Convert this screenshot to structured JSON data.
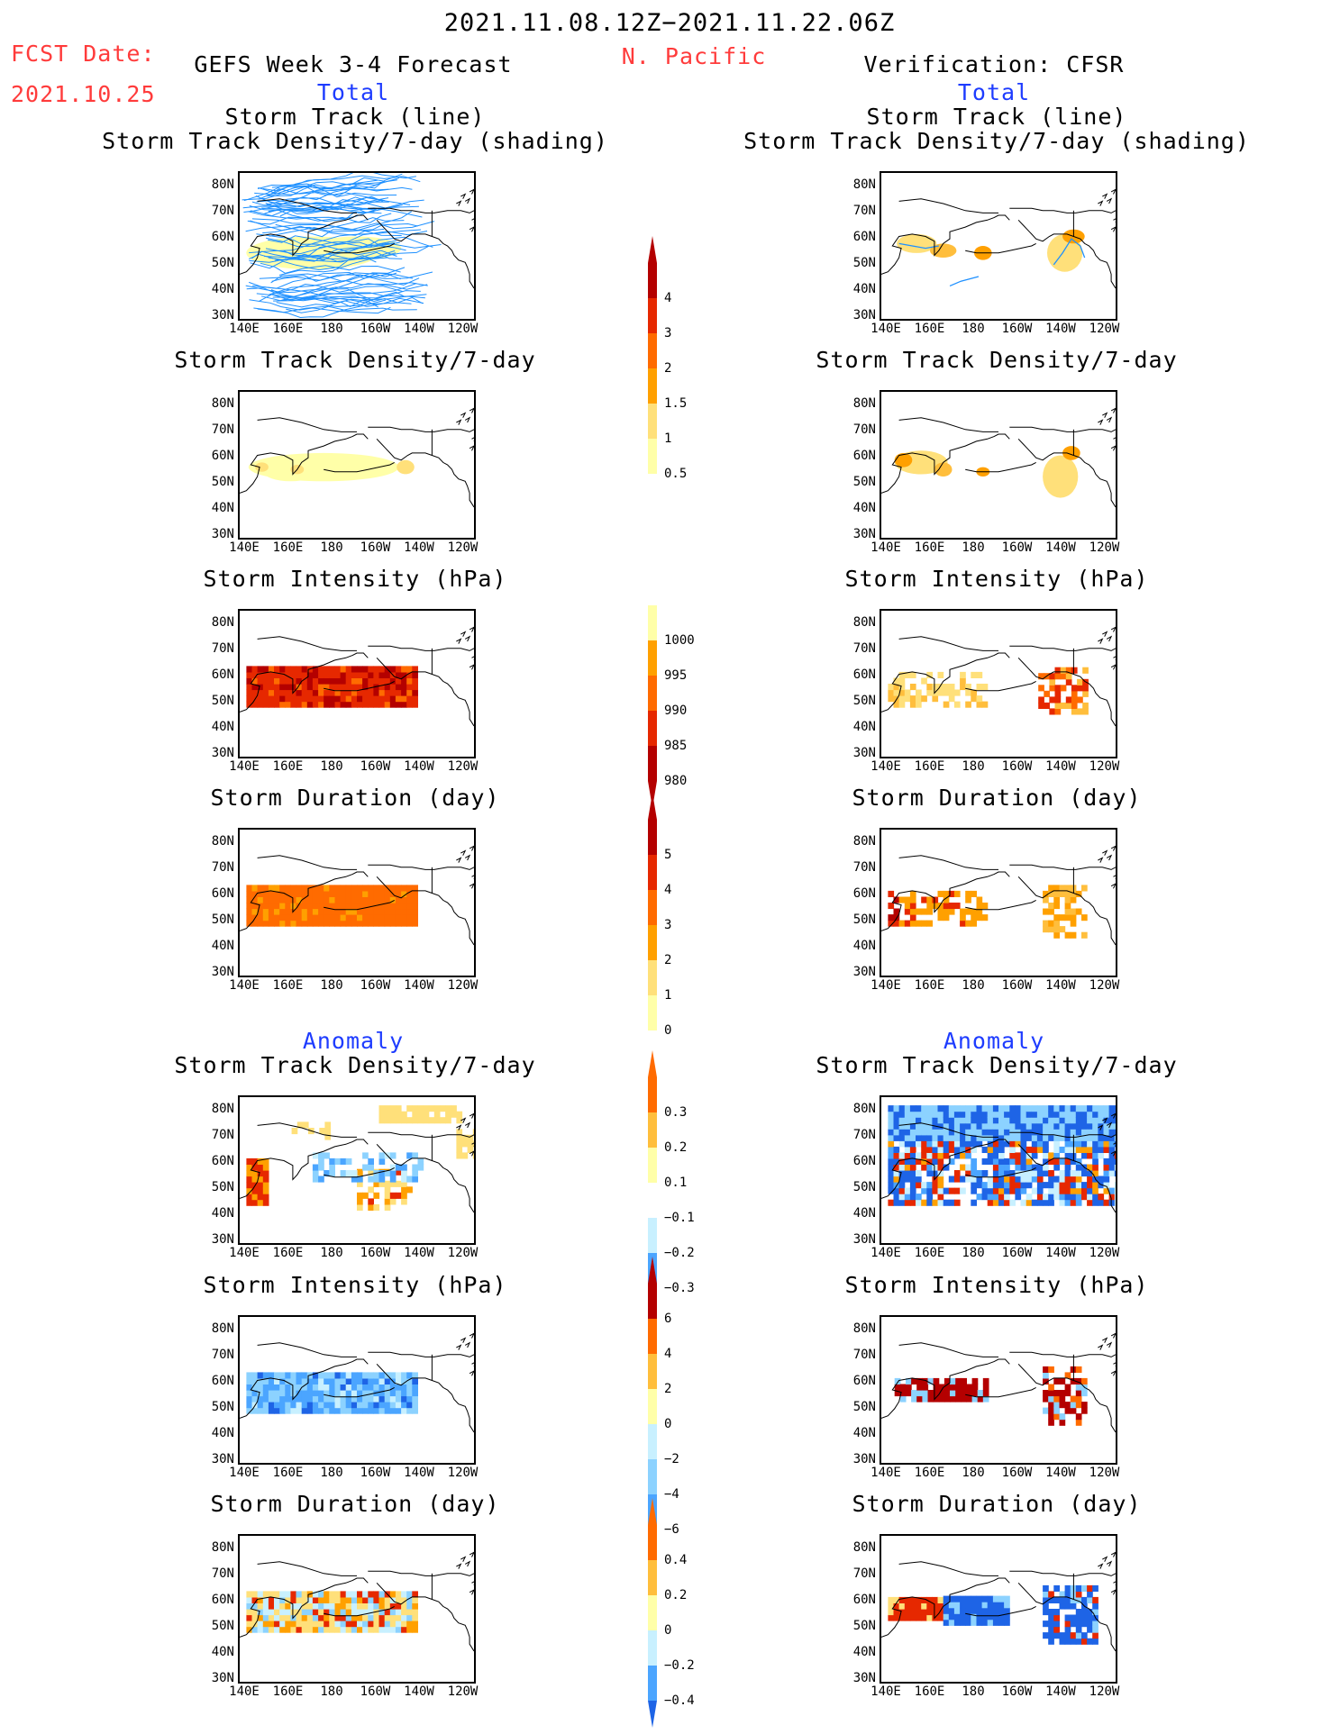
{
  "header": {
    "period": "2021.11.08.12Z−2021.11.22.06Z",
    "region": "N. Pacific",
    "fcst_label": "FCST Date:",
    "fcst_date": "2021.10.25",
    "left_title": "GEFS Week 3-4 Forecast",
    "right_title": "Verification: CFSR",
    "total_label": "Total",
    "anomaly_label": "Anomaly"
  },
  "axes": {
    "lat_ticks": [
      "80N",
      "70N",
      "60N",
      "50N",
      "40N",
      "30N"
    ],
    "lon_ticks": [
      "140E",
      "160E",
      "180",
      "160W",
      "140W",
      "120W"
    ]
  },
  "panels": {
    "track_title_1": "Storm Track (line)",
    "track_title_2": "Storm Track Density/7-day (shading)",
    "density": "Storm Track Density/7-day",
    "intensity": "Storm Intensity (hPa)",
    "duration": "Storm Duration (day)"
  },
  "colorbars": {
    "density_total": [
      "4",
      "3",
      "2",
      "1.5",
      "1",
      "0.5"
    ],
    "intensity_total": [
      "1000",
      "995",
      "990",
      "985",
      "980"
    ],
    "duration_total": [
      "5",
      "4",
      "3",
      "2",
      "1",
      "0"
    ],
    "density_anom": [
      "0.3",
      "0.2",
      "0.1",
      "−0.1",
      "−0.2",
      "−0.3"
    ],
    "intensity_anom": [
      "6",
      "4",
      "2",
      "0",
      "−2",
      "−4",
      "−6"
    ],
    "duration_anom": [
      "0.4",
      "0.2",
      "0",
      "−0.2",
      "−0.4"
    ]
  },
  "colors": {
    "warm": [
      "#ffffa8",
      "#ffe07a",
      "#ffbe3c",
      "#ffa000",
      "#ff6b00",
      "#e62800",
      "#b40000"
    ],
    "cool": [
      "#c8f0ff",
      "#8cd2ff",
      "#4ba5ff",
      "#1e64e6",
      "#0a3cc8"
    ],
    "track_line": "#1e90ff",
    "title_red": "#ff3b3b",
    "title_blue": "#1e3cff"
  }
}
